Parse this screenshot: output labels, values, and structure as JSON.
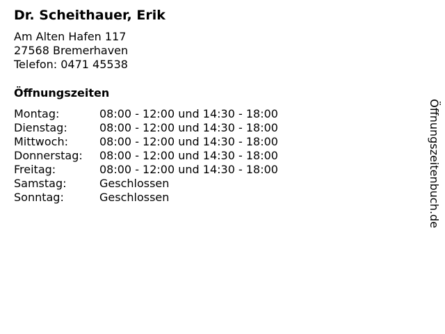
{
  "name": "Dr. Scheithauer, Erik",
  "address": {
    "street": "Am Alten Hafen 117",
    "city": "27568 Bremerhaven",
    "phone": "Telefon: 0471 45538"
  },
  "hours_heading": "Öffnungszeiten",
  "hours": [
    {
      "day": "Montag:",
      "time": "08:00 - 12:00 und 14:30 - 18:00"
    },
    {
      "day": "Dienstag:",
      "time": "08:00 - 12:00 und 14:30 - 18:00"
    },
    {
      "day": "Mittwoch:",
      "time": "08:00 - 12:00 und 14:30 - 18:00"
    },
    {
      "day": "Donnerstag:",
      "time": "08:00 - 12:00 und 14:30 - 18:00"
    },
    {
      "day": "Freitag:",
      "time": "08:00 - 12:00 und 14:30 - 18:00"
    },
    {
      "day": "Samstag:",
      "time": "Geschlossen"
    },
    {
      "day": "Sonntag:",
      "time": "Geschlossen"
    }
  ],
  "watermark": "Öffnungszeitenbuch.de"
}
